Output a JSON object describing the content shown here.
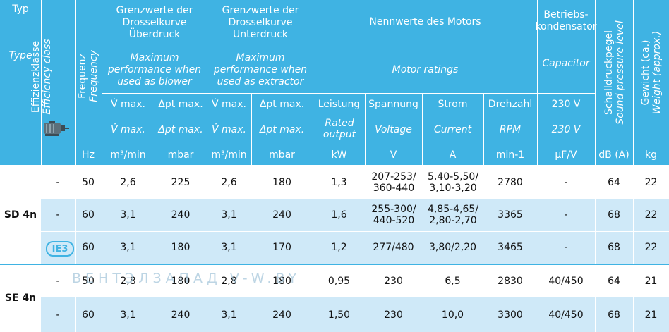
{
  "header": {
    "typ_de": "Typ",
    "typ_en": "Type",
    "eff_de": "Effizienzklasse",
    "eff_en": "Efficiency class",
    "freq_de": "Frequenz",
    "freq_en": "Frequency",
    "blower_de": "Grenzwerte der Drosselkurve Überdruck",
    "blower_en": "Maximum performance when used as blower",
    "extractor_de": "Grenzwerte der Drosselkurve Unterdruck",
    "extractor_en": "Maximum performance when used as extractor",
    "motor_de": "Nennwerte des Motors",
    "motor_en": "Motor ratings",
    "capacitor_de": "Betriebs-kondensator",
    "capacitor_en": "Capacitor",
    "sound_de": "Schalldruckpegel",
    "sound_en": "Sound pressure level",
    "weight_de": "Gewicht (ca.)",
    "weight_en": "Weight (approx.)",
    "sub": {
      "vmax_de": "V̇ max.",
      "dp_de": "Δpt max.",
      "vmax_en": "V̇ max.",
      "dp_en": "Δpt max.",
      "power_de": "Leistung",
      "power_en": "Rated output",
      "voltage_de": "Spannung",
      "voltage_en": "Voltage",
      "current_de": "Strom",
      "current_en": "Current",
      "rpm_de": "Drehzahl",
      "rpm_en": "RPM",
      "cap_de": "230 V",
      "cap_en": "230 V"
    },
    "units": [
      "Hz",
      "m³/min",
      "mbar",
      "m³/min",
      "mbar",
      "kW",
      "V",
      "A",
      "min-1",
      "µF/V",
      "dB (A)",
      "kg"
    ]
  },
  "groups": [
    {
      "type": "SD 4n",
      "rows": [
        {
          "eff": "-",
          "freq": "50",
          "bl_v": "2,6",
          "bl_p": "225",
          "ex_v": "2,6",
          "ex_p": "180",
          "kw": "1,3",
          "volt": "207-253/ 360-440",
          "amp": "5,40-5,50/ 3,10-3,20",
          "rpm": "2780",
          "cap": "-",
          "db": "64",
          "kg": "22"
        },
        {
          "eff": "-",
          "freq": "60",
          "bl_v": "3,1",
          "bl_p": "240",
          "ex_v": "3,1",
          "ex_p": "240",
          "kw": "1,6",
          "volt": "255-300/ 440-520",
          "amp": "4,85-4,65/ 2,80-2,70",
          "rpm": "3365",
          "cap": "-",
          "db": "68",
          "kg": "22"
        },
        {
          "eff": "IE3",
          "freq": "60",
          "bl_v": "3,1",
          "bl_p": "180",
          "ex_v": "3,1",
          "ex_p": "170",
          "kw": "1,2",
          "volt": "277/480",
          "amp": "3,80/2,20",
          "rpm": "3465",
          "cap": "-",
          "db": "68",
          "kg": "22"
        }
      ]
    },
    {
      "type": "SE 4n",
      "rows": [
        {
          "eff": "-",
          "freq": "50",
          "bl_v": "2,8",
          "bl_p": "180",
          "ex_v": "2,8",
          "ex_p": "180",
          "kw": "0,95",
          "volt": "230",
          "amp": "6,5",
          "rpm": "2830",
          "cap": "40/450",
          "db": "64",
          "kg": "21"
        },
        {
          "eff": "-",
          "freq": "60",
          "bl_v": "3,1",
          "bl_p": "240",
          "ex_v": "3,1",
          "ex_p": "240",
          "kw": "1,50",
          "volt": "230",
          "amp": "10,0",
          "rpm": "3300",
          "cap": "40/450",
          "db": "68",
          "kg": "21"
        }
      ]
    }
  ],
  "watermark": "ВЕНТЭЛЗАПАД  V-W.BY",
  "colors": {
    "header": "#3fb3e3",
    "band": "#cfe9f8",
    "text": "#111111",
    "badge": "#3fb3e3"
  }
}
